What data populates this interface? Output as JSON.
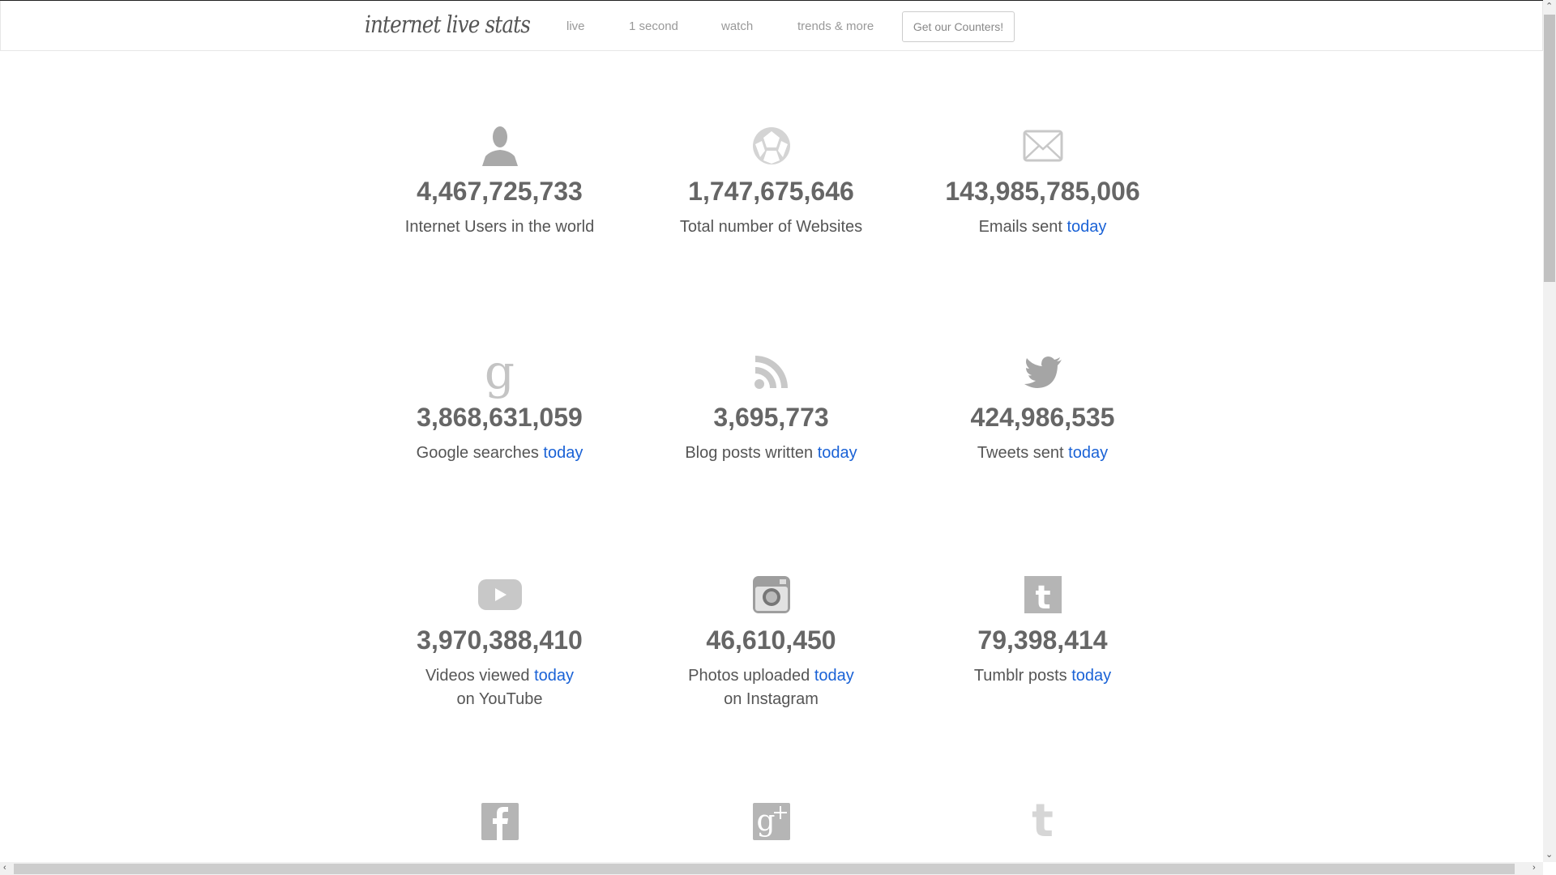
{
  "nav": {
    "logo": "internet live stats",
    "links": [
      "live",
      "1 second",
      "watch",
      "trends & more"
    ],
    "button": "Get our Counters!"
  },
  "stats": [
    {
      "icon": "user-icon",
      "number": "4,467,725,733",
      "label": "Internet Users in the world",
      "today": ""
    },
    {
      "icon": "globe-icon",
      "number": "1,747,675,646",
      "label": "Total number of Websites",
      "today": ""
    },
    {
      "icon": "envelope-icon",
      "number": "143,985,785,006",
      "label": "Emails sent",
      "today": "today"
    },
    {
      "icon": "google-icon",
      "number": "3,868,631,059",
      "label": "Google searches",
      "today": "today"
    },
    {
      "icon": "rss-icon",
      "number": "3,695,773",
      "label": "Blog posts written",
      "today": "today"
    },
    {
      "icon": "twitter-bird-icon",
      "number": "424,986,535",
      "label": "Tweets sent",
      "today": "today"
    },
    {
      "icon": "youtube-icon",
      "number": "3,970,388,410",
      "label": "Videos viewed",
      "today": "today",
      "line2": "on YouTube"
    },
    {
      "icon": "instagram-icon",
      "number": "46,610,450",
      "label": "Photos uploaded",
      "today": "today",
      "line2": "on Instagram"
    },
    {
      "icon": "tumblr-icon",
      "number": "79,398,414",
      "label": "Tumblr posts",
      "today": "today"
    }
  ],
  "partial_row_icons": [
    "facebook-icon",
    "google-plus-icon",
    "twitter-t-icon"
  ],
  "colors": {
    "link": "#1a62d6",
    "number": "#666666",
    "icon": "#b5b5b5"
  }
}
